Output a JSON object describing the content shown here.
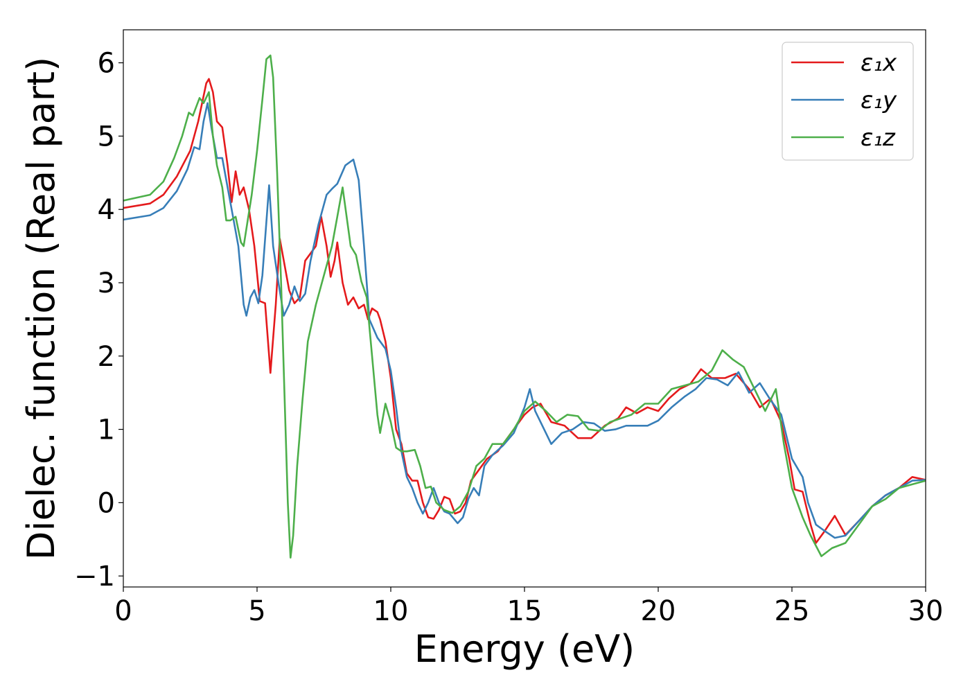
{
  "chart_data": {
    "type": "line",
    "title": "",
    "xlabel": "Energy (eV)",
    "ylabel": "Dielec. function (Real part)",
    "xlim": [
      0,
      30
    ],
    "ylim": [
      -1.15,
      6.45
    ],
    "xticks": [
      0,
      5,
      10,
      15,
      20,
      25,
      30
    ],
    "yticks": [
      -1,
      0,
      1,
      2,
      3,
      4,
      5,
      6
    ],
    "ytick_labels": [
      "−1",
      "0",
      "1",
      "2",
      "3",
      "4",
      "5",
      "6"
    ],
    "grid": false,
    "legend_position": "top-right",
    "series": [
      {
        "name": "ε₁x",
        "color": "#e41a1c",
        "points": [
          [
            0,
            4.02
          ],
          [
            1,
            4.08
          ],
          [
            1.5,
            4.2
          ],
          [
            2,
            4.45
          ],
          [
            2.5,
            4.8
          ],
          [
            2.8,
            5.2
          ],
          [
            3.1,
            5.72
          ],
          [
            3.2,
            5.78
          ],
          [
            3.35,
            5.6
          ],
          [
            3.5,
            5.2
          ],
          [
            3.7,
            5.12
          ],
          [
            3.9,
            4.6
          ],
          [
            4.05,
            4.1
          ],
          [
            4.2,
            4.52
          ],
          [
            4.35,
            4.2
          ],
          [
            4.5,
            4.3
          ],
          [
            4.7,
            4.0
          ],
          [
            4.9,
            3.5
          ],
          [
            5.1,
            2.75
          ],
          [
            5.3,
            2.72
          ],
          [
            5.5,
            1.77
          ],
          [
            5.7,
            2.7
          ],
          [
            5.85,
            3.6
          ],
          [
            6.0,
            3.3
          ],
          [
            6.2,
            2.9
          ],
          [
            6.4,
            2.72
          ],
          [
            6.6,
            2.8
          ],
          [
            6.8,
            3.3
          ],
          [
            7.0,
            3.4
          ],
          [
            7.2,
            3.5
          ],
          [
            7.4,
            3.9
          ],
          [
            7.6,
            3.5
          ],
          [
            7.75,
            3.08
          ],
          [
            7.9,
            3.3
          ],
          [
            8.0,
            3.55
          ],
          [
            8.2,
            3.0
          ],
          [
            8.4,
            2.7
          ],
          [
            8.6,
            2.8
          ],
          [
            8.8,
            2.65
          ],
          [
            9.0,
            2.7
          ],
          [
            9.15,
            2.5
          ],
          [
            9.3,
            2.65
          ],
          [
            9.5,
            2.6
          ],
          [
            9.6,
            2.5
          ],
          [
            9.8,
            2.2
          ],
          [
            10.0,
            1.7
          ],
          [
            10.2,
            1.0
          ],
          [
            10.4,
            0.8
          ],
          [
            10.6,
            0.4
          ],
          [
            10.8,
            0.3
          ],
          [
            11.0,
            0.3
          ],
          [
            11.2,
            0.0
          ],
          [
            11.4,
            -0.2
          ],
          [
            11.6,
            -0.22
          ],
          [
            11.8,
            -0.1
          ],
          [
            12.0,
            0.08
          ],
          [
            12.2,
            0.05
          ],
          [
            12.4,
            -0.15
          ],
          [
            12.6,
            -0.12
          ],
          [
            12.8,
            0.0
          ],
          [
            13.0,
            0.3
          ],
          [
            13.3,
            0.45
          ],
          [
            13.6,
            0.6
          ],
          [
            14.0,
            0.7
          ],
          [
            14.5,
            0.95
          ],
          [
            15.0,
            1.2
          ],
          [
            15.3,
            1.3
          ],
          [
            15.6,
            1.35
          ],
          [
            16.0,
            1.1
          ],
          [
            16.5,
            1.05
          ],
          [
            17.0,
            0.88
          ],
          [
            17.5,
            0.88
          ],
          [
            18.0,
            1.05
          ],
          [
            18.5,
            1.15
          ],
          [
            18.8,
            1.3
          ],
          [
            19.2,
            1.22
          ],
          [
            19.6,
            1.3
          ],
          [
            20.0,
            1.25
          ],
          [
            20.4,
            1.42
          ],
          [
            20.8,
            1.55
          ],
          [
            21.2,
            1.62
          ],
          [
            21.6,
            1.82
          ],
          [
            22.0,
            1.7
          ],
          [
            22.5,
            1.7
          ],
          [
            22.9,
            1.76
          ],
          [
            23.4,
            1.55
          ],
          [
            23.8,
            1.3
          ],
          [
            24.2,
            1.42
          ],
          [
            24.6,
            1.1
          ],
          [
            24.9,
            0.6
          ],
          [
            25.1,
            0.18
          ],
          [
            25.4,
            0.15
          ],
          [
            25.7,
            -0.3
          ],
          [
            25.9,
            -0.55
          ],
          [
            26.2,
            -0.4
          ],
          [
            26.6,
            -0.18
          ],
          [
            27.0,
            -0.44
          ],
          [
            27.5,
            -0.25
          ],
          [
            28.0,
            -0.05
          ],
          [
            28.5,
            0.1
          ],
          [
            29.0,
            0.2
          ],
          [
            29.5,
            0.35
          ],
          [
            30,
            0.31
          ]
        ]
      },
      {
        "name": "ε₁y",
        "color": "#377eb8",
        "points": [
          [
            0,
            3.86
          ],
          [
            1,
            3.92
          ],
          [
            1.5,
            4.02
          ],
          [
            2,
            4.25
          ],
          [
            2.4,
            4.55
          ],
          [
            2.65,
            4.85
          ],
          [
            2.85,
            4.82
          ],
          [
            3.0,
            5.2
          ],
          [
            3.15,
            5.45
          ],
          [
            3.3,
            5.1
          ],
          [
            3.5,
            4.7
          ],
          [
            3.7,
            4.7
          ],
          [
            3.9,
            4.3
          ],
          [
            4.1,
            3.9
          ],
          [
            4.3,
            3.5
          ],
          [
            4.5,
            2.7
          ],
          [
            4.6,
            2.55
          ],
          [
            4.75,
            2.8
          ],
          [
            4.9,
            2.9
          ],
          [
            5.05,
            2.72
          ],
          [
            5.2,
            3.1
          ],
          [
            5.45,
            4.33
          ],
          [
            5.6,
            3.5
          ],
          [
            5.8,
            3.0
          ],
          [
            6.0,
            2.55
          ],
          [
            6.2,
            2.7
          ],
          [
            6.4,
            2.95
          ],
          [
            6.6,
            2.75
          ],
          [
            6.8,
            2.85
          ],
          [
            7.0,
            3.3
          ],
          [
            7.3,
            3.8
          ],
          [
            7.6,
            4.2
          ],
          [
            7.8,
            4.28
          ],
          [
            8.0,
            4.35
          ],
          [
            8.3,
            4.6
          ],
          [
            8.6,
            4.68
          ],
          [
            8.8,
            4.4
          ],
          [
            9.0,
            3.5
          ],
          [
            9.2,
            2.5
          ],
          [
            9.5,
            2.25
          ],
          [
            9.8,
            2.1
          ],
          [
            10.0,
            1.8
          ],
          [
            10.2,
            1.3
          ],
          [
            10.4,
            0.7
          ],
          [
            10.6,
            0.35
          ],
          [
            10.8,
            0.2
          ],
          [
            11.0,
            0.0
          ],
          [
            11.2,
            -0.15
          ],
          [
            11.4,
            0.0
          ],
          [
            11.6,
            0.2
          ],
          [
            11.8,
            0.0
          ],
          [
            12.0,
            -0.12
          ],
          [
            12.2,
            -0.15
          ],
          [
            12.5,
            -0.28
          ],
          [
            12.7,
            -0.2
          ],
          [
            12.9,
            0.05
          ],
          [
            13.1,
            0.2
          ],
          [
            13.3,
            0.1
          ],
          [
            13.5,
            0.5
          ],
          [
            13.8,
            0.65
          ],
          [
            14.2,
            0.78
          ],
          [
            14.6,
            0.95
          ],
          [
            15.0,
            1.3
          ],
          [
            15.2,
            1.55
          ],
          [
            15.4,
            1.25
          ],
          [
            15.8,
            0.95
          ],
          [
            16.0,
            0.8
          ],
          [
            16.4,
            0.95
          ],
          [
            16.8,
            1.0
          ],
          [
            17.2,
            1.1
          ],
          [
            17.6,
            1.08
          ],
          [
            18.0,
            0.98
          ],
          [
            18.4,
            1.0
          ],
          [
            18.8,
            1.05
          ],
          [
            19.2,
            1.05
          ],
          [
            19.6,
            1.05
          ],
          [
            20.0,
            1.12
          ],
          [
            20.5,
            1.3
          ],
          [
            21.0,
            1.45
          ],
          [
            21.4,
            1.55
          ],
          [
            21.8,
            1.7
          ],
          [
            22.2,
            1.68
          ],
          [
            22.6,
            1.6
          ],
          [
            23.0,
            1.78
          ],
          [
            23.4,
            1.5
          ],
          [
            23.8,
            1.63
          ],
          [
            24.2,
            1.4
          ],
          [
            24.6,
            1.2
          ],
          [
            25.0,
            0.6
          ],
          [
            25.4,
            0.35
          ],
          [
            25.6,
            0.0
          ],
          [
            25.9,
            -0.3
          ],
          [
            26.2,
            -0.38
          ],
          [
            26.6,
            -0.48
          ],
          [
            27.0,
            -0.45
          ],
          [
            27.5,
            -0.25
          ],
          [
            28.0,
            -0.05
          ],
          [
            28.5,
            0.1
          ],
          [
            29.0,
            0.2
          ],
          [
            29.5,
            0.3
          ],
          [
            30,
            0.31
          ]
        ]
      },
      {
        "name": "ε₁z",
        "color": "#4daf4a",
        "points": [
          [
            0,
            4.12
          ],
          [
            1,
            4.2
          ],
          [
            1.5,
            4.38
          ],
          [
            1.9,
            4.7
          ],
          [
            2.2,
            5.0
          ],
          [
            2.45,
            5.32
          ],
          [
            2.6,
            5.28
          ],
          [
            2.85,
            5.52
          ],
          [
            3.0,
            5.45
          ],
          [
            3.2,
            5.6
          ],
          [
            3.35,
            5.0
          ],
          [
            3.5,
            4.6
          ],
          [
            3.7,
            4.3
          ],
          [
            3.85,
            3.85
          ],
          [
            4.0,
            3.85
          ],
          [
            4.2,
            3.9
          ],
          [
            4.4,
            3.55
          ],
          [
            4.5,
            3.5
          ],
          [
            4.8,
            4.2
          ],
          [
            5.0,
            4.8
          ],
          [
            5.2,
            5.5
          ],
          [
            5.35,
            6.05
          ],
          [
            5.5,
            6.1
          ],
          [
            5.6,
            5.8
          ],
          [
            5.75,
            4.5
          ],
          [
            5.9,
            3.0
          ],
          [
            6.05,
            1.2
          ],
          [
            6.15,
            0.0
          ],
          [
            6.25,
            -0.75
          ],
          [
            6.35,
            -0.45
          ],
          [
            6.5,
            0.5
          ],
          [
            6.7,
            1.4
          ],
          [
            6.9,
            2.2
          ],
          [
            7.2,
            2.7
          ],
          [
            7.5,
            3.1
          ],
          [
            7.8,
            3.5
          ],
          [
            8.0,
            3.9
          ],
          [
            8.2,
            4.3
          ],
          [
            8.35,
            3.9
          ],
          [
            8.5,
            3.5
          ],
          [
            8.7,
            3.38
          ],
          [
            8.9,
            3.02
          ],
          [
            9.1,
            2.8
          ],
          [
            9.3,
            2.0
          ],
          [
            9.5,
            1.2
          ],
          [
            9.6,
            0.95
          ],
          [
            9.8,
            1.35
          ],
          [
            10.0,
            1.1
          ],
          [
            10.2,
            0.75
          ],
          [
            10.4,
            0.7
          ],
          [
            10.6,
            0.7
          ],
          [
            10.9,
            0.72
          ],
          [
            11.1,
            0.5
          ],
          [
            11.3,
            0.2
          ],
          [
            11.5,
            0.22
          ],
          [
            11.7,
            0.0
          ],
          [
            12.0,
            -0.1
          ],
          [
            12.3,
            -0.14
          ],
          [
            12.6,
            -0.05
          ],
          [
            12.9,
            0.15
          ],
          [
            13.2,
            0.5
          ],
          [
            13.5,
            0.6
          ],
          [
            13.8,
            0.8
          ],
          [
            14.2,
            0.8
          ],
          [
            14.6,
            1.0
          ],
          [
            15.0,
            1.25
          ],
          [
            15.4,
            1.38
          ],
          [
            15.8,
            1.25
          ],
          [
            16.2,
            1.1
          ],
          [
            16.6,
            1.2
          ],
          [
            17.0,
            1.18
          ],
          [
            17.4,
            1.0
          ],
          [
            17.8,
            0.98
          ],
          [
            18.2,
            1.1
          ],
          [
            18.6,
            1.15
          ],
          [
            19.0,
            1.2
          ],
          [
            19.5,
            1.35
          ],
          [
            20.0,
            1.35
          ],
          [
            20.5,
            1.55
          ],
          [
            21.0,
            1.6
          ],
          [
            21.5,
            1.65
          ],
          [
            22.0,
            1.8
          ],
          [
            22.4,
            2.08
          ],
          [
            22.8,
            1.95
          ],
          [
            23.2,
            1.85
          ],
          [
            23.6,
            1.55
          ],
          [
            24.0,
            1.25
          ],
          [
            24.4,
            1.55
          ],
          [
            24.7,
            0.8
          ],
          [
            25.0,
            0.2
          ],
          [
            25.4,
            -0.2
          ],
          [
            25.7,
            -0.45
          ],
          [
            26.1,
            -0.73
          ],
          [
            26.5,
            -0.62
          ],
          [
            27.0,
            -0.55
          ],
          [
            27.5,
            -0.3
          ],
          [
            28.0,
            -0.05
          ],
          [
            28.5,
            0.05
          ],
          [
            29.0,
            0.2
          ],
          [
            29.5,
            0.25
          ],
          [
            30,
            0.3
          ]
        ]
      }
    ]
  }
}
